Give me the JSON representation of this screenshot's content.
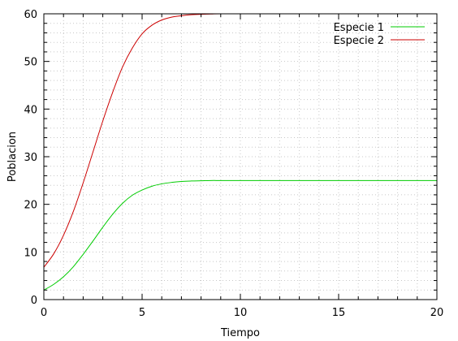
{
  "chart_data": {
    "type": "line",
    "title": "",
    "xlabel": "Tiempo",
    "ylabel": "Poblacion",
    "xlim": [
      0,
      20
    ],
    "ylim": [
      0,
      60
    ],
    "x_ticks": [
      "0",
      "5",
      "10",
      "15",
      "20"
    ],
    "y_ticks": [
      "0",
      "10",
      "20",
      "30",
      "40",
      "50",
      "60"
    ],
    "grid": true,
    "legend_position": "top-right",
    "x": [
      0,
      0.5,
      1,
      1.5,
      2,
      2.5,
      3,
      3.5,
      4,
      4.5,
      5,
      5.5,
      6,
      6.5,
      7,
      7.5,
      8,
      8.5,
      9,
      10,
      11,
      12,
      13,
      14,
      15,
      16,
      17,
      18,
      19,
      20
    ],
    "series": [
      {
        "name": "Especie 1",
        "color": "#00cc00",
        "values": [
          2.0,
          3.2,
          4.8,
          6.9,
          9.5,
          12.3,
          15.2,
          17.9,
          20.2,
          21.9,
          23.0,
          23.8,
          24.3,
          24.6,
          24.8,
          24.9,
          24.95,
          25.0,
          25.0,
          25.0,
          25.0,
          25.0,
          25.0,
          25.0,
          25.0,
          25.0,
          25.0,
          25.0,
          25.0,
          25.0
        ]
      },
      {
        "name": "Especie 2",
        "color": "#cc0000",
        "values": [
          6.8,
          9.6,
          13.5,
          18.5,
          24.5,
          31.0,
          37.5,
          43.5,
          48.8,
          52.8,
          55.8,
          57.6,
          58.7,
          59.3,
          59.6,
          59.8,
          59.9,
          59.95,
          60.0,
          60.0,
          60.0,
          60.0,
          60.0,
          60.0,
          60.0,
          60.0,
          60.0,
          60.0,
          60.0,
          60.0
        ]
      }
    ]
  }
}
